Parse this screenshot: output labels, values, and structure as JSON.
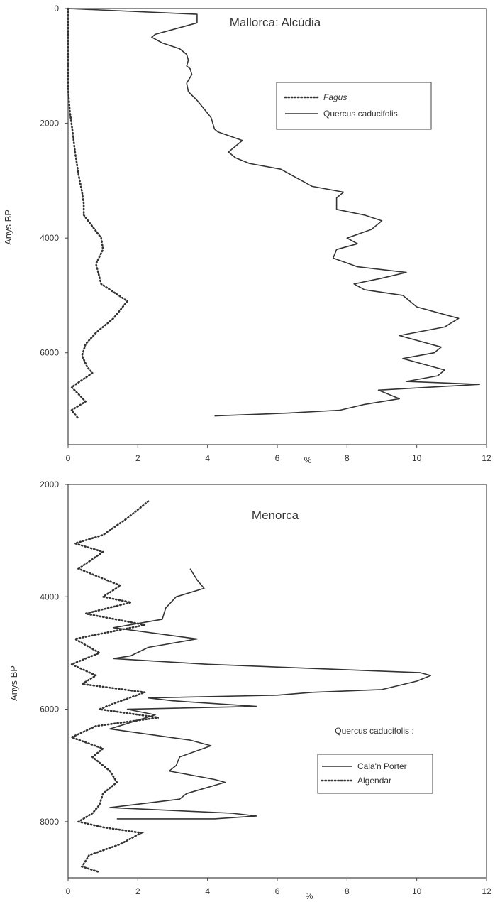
{
  "chart_data": [
    {
      "type": "line",
      "title": "Mallorca: Alcúdia",
      "xlabel": "%",
      "ylabel": "Anys BP",
      "xlim": [
        0,
        12
      ],
      "ylim": [
        0,
        7600
      ],
      "y_inverted": true,
      "x_ticks": [
        "0",
        "2",
        "4",
        "6",
        "8",
        "10",
        "12"
      ],
      "y_ticks": [
        "0",
        "2000",
        "4000",
        "6000"
      ],
      "legend_position": "top-right",
      "series": [
        {
          "name": "Fagus",
          "style": "dotted",
          "points": [
            [
              0,
              0
            ],
            [
              0,
              200
            ],
            [
              0,
              400
            ],
            [
              0,
              600
            ],
            [
              0,
              800
            ],
            [
              0,
              1000
            ],
            [
              0,
              1200
            ],
            [
              0,
              1400
            ],
            [
              0.05,
              1800
            ],
            [
              0.12,
              2100
            ],
            [
              0.2,
              2500
            ],
            [
              0.3,
              2900
            ],
            [
              0.4,
              3200
            ],
            [
              0.45,
              3400
            ],
            [
              0.45,
              3600
            ],
            [
              0.7,
              3800
            ],
            [
              0.95,
              4000
            ],
            [
              1.0,
              4200
            ],
            [
              0.8,
              4450
            ],
            [
              0.95,
              4800
            ],
            [
              1.7,
              5100
            ],
            [
              1.3,
              5400
            ],
            [
              0.8,
              5650
            ],
            [
              0.5,
              5850
            ],
            [
              0.4,
              6050
            ],
            [
              0.55,
              6250
            ],
            [
              0.7,
              6350
            ],
            [
              0.1,
              6600
            ],
            [
              0.35,
              6750
            ],
            [
              0.5,
              6850
            ],
            [
              0.1,
              7000
            ],
            [
              0.3,
              7150
            ]
          ]
        },
        {
          "name": "Quercus caducifolis",
          "style": "solid",
          "points": [
            [
              0,
              0
            ],
            [
              3.7,
              100
            ],
            [
              3.7,
              250
            ],
            [
              2.5,
              450
            ],
            [
              2.4,
              500
            ],
            [
              2.7,
              600
            ],
            [
              3.2,
              700
            ],
            [
              3.4,
              800
            ],
            [
              3.45,
              900
            ],
            [
              3.4,
              1000
            ],
            [
              3.5,
              1050
            ],
            [
              3.55,
              1150
            ],
            [
              3.4,
              1300
            ],
            [
              3.45,
              1450
            ],
            [
              3.7,
              1600
            ],
            [
              3.9,
              1750
            ],
            [
              4.1,
              1900
            ],
            [
              4.2,
              2100
            ],
            [
              4.3,
              2150
            ],
            [
              5.0,
              2300
            ],
            [
              4.6,
              2500
            ],
            [
              4.8,
              2600
            ],
            [
              5.2,
              2700
            ],
            [
              6.1,
              2800
            ],
            [
              6.4,
              2900
            ],
            [
              7.0,
              3100
            ],
            [
              7.9,
              3200
            ],
            [
              7.7,
              3300
            ],
            [
              7.7,
              3500
            ],
            [
              8.5,
              3600
            ],
            [
              9.0,
              3700
            ],
            [
              8.7,
              3850
            ],
            [
              8.0,
              4000
            ],
            [
              8.3,
              4100
            ],
            [
              7.7,
              4200
            ],
            [
              7.6,
              4350
            ],
            [
              8.3,
              4500
            ],
            [
              9.7,
              4600
            ],
            [
              9.0,
              4700
            ],
            [
              8.2,
              4800
            ],
            [
              8.5,
              4900
            ],
            [
              9.6,
              5000
            ],
            [
              10.0,
              5200
            ],
            [
              11.2,
              5400
            ],
            [
              10.8,
              5550
            ],
            [
              9.5,
              5700
            ],
            [
              10.7,
              5900
            ],
            [
              10.5,
              6000
            ],
            [
              9.6,
              6100
            ],
            [
              10.8,
              6300
            ],
            [
              10.6,
              6400
            ],
            [
              9.7,
              6500
            ],
            [
              11.8,
              6550
            ],
            [
              8.9,
              6650
            ],
            [
              9.5,
              6800
            ],
            [
              8.5,
              6900
            ],
            [
              7.8,
              7000
            ],
            [
              6.3,
              7050
            ],
            [
              4.2,
              7100
            ]
          ]
        }
      ]
    },
    {
      "type": "line",
      "title": "Menorca",
      "subtitle": "Quercus caducifolis :",
      "xlabel": "%",
      "ylabel": "Anys BP",
      "xlim": [
        0,
        12
      ],
      "ylim": [
        2000,
        9000
      ],
      "y_inverted": true,
      "x_ticks": [
        "0",
        "2",
        "4",
        "6",
        "8",
        "10",
        "12"
      ],
      "y_ticks": [
        "2000",
        "4000",
        "6000",
        "8000"
      ],
      "legend_position": "right",
      "series": [
        {
          "name": "Cala'n Porter",
          "style": "solid",
          "points": [
            [
              3.5,
              3500
            ],
            [
              3.7,
              3700
            ],
            [
              3.9,
              3850
            ],
            [
              3.1,
              4000
            ],
            [
              2.8,
              4200
            ],
            [
              2.7,
              4400
            ],
            [
              1.3,
              4550
            ],
            [
              3.7,
              4750
            ],
            [
              2.3,
              4900
            ],
            [
              1.8,
              5050
            ],
            [
              1.3,
              5100
            ],
            [
              4.0,
              5200
            ],
            [
              10.1,
              5350
            ],
            [
              10.4,
              5400
            ],
            [
              10.0,
              5500
            ],
            [
              9.0,
              5650
            ],
            [
              7.0,
              5700
            ],
            [
              6.0,
              5750
            ],
            [
              2.3,
              5800
            ],
            [
              3.0,
              5850
            ],
            [
              5.4,
              5950
            ],
            [
              1.7,
              6000
            ],
            [
              2.5,
              6100
            ],
            [
              1.2,
              6350
            ],
            [
              3.5,
              6550
            ],
            [
              4.1,
              6650
            ],
            [
              3.2,
              6850
            ],
            [
              3.1,
              7000
            ],
            [
              2.9,
              7100
            ],
            [
              4.2,
              7250
            ],
            [
              4.5,
              7300
            ],
            [
              3.4,
              7500
            ],
            [
              3.2,
              7600
            ],
            [
              1.2,
              7750
            ],
            [
              4.7,
              7850
            ],
            [
              5.4,
              7900
            ],
            [
              4.2,
              7950
            ],
            [
              1.4,
              7950
            ]
          ]
        },
        {
          "name": "Algendar",
          "style": "dotted",
          "points": [
            [
              2.3,
              2300
            ],
            [
              1.7,
              2600
            ],
            [
              1.0,
              2900
            ],
            [
              0.2,
              3050
            ],
            [
              1.0,
              3200
            ],
            [
              0.3,
              3500
            ],
            [
              1.5,
              3800
            ],
            [
              1.0,
              4000
            ],
            [
              1.8,
              4100
            ],
            [
              0.5,
              4300
            ],
            [
              2.2,
              4500
            ],
            [
              0.2,
              4750
            ],
            [
              0.9,
              5000
            ],
            [
              0.1,
              5200
            ],
            [
              0.8,
              5400
            ],
            [
              0.4,
              5550
            ],
            [
              2.2,
              5700
            ],
            [
              1.3,
              5900
            ],
            [
              0.9,
              6000
            ],
            [
              2.6,
              6150
            ],
            [
              0.8,
              6300
            ],
            [
              0.1,
              6500
            ],
            [
              1.0,
              6700
            ],
            [
              0.7,
              6850
            ],
            [
              1.2,
              7100
            ],
            [
              1.4,
              7300
            ],
            [
              1.0,
              7500
            ],
            [
              0.9,
              7700
            ],
            [
              0.7,
              7850
            ],
            [
              0.3,
              8000
            ],
            [
              1.0,
              8100
            ],
            [
              2.1,
              8200
            ],
            [
              1.5,
              8400
            ],
            [
              0.6,
              8600
            ],
            [
              0.4,
              8800
            ],
            [
              0.9,
              8900
            ]
          ]
        }
      ]
    }
  ]
}
